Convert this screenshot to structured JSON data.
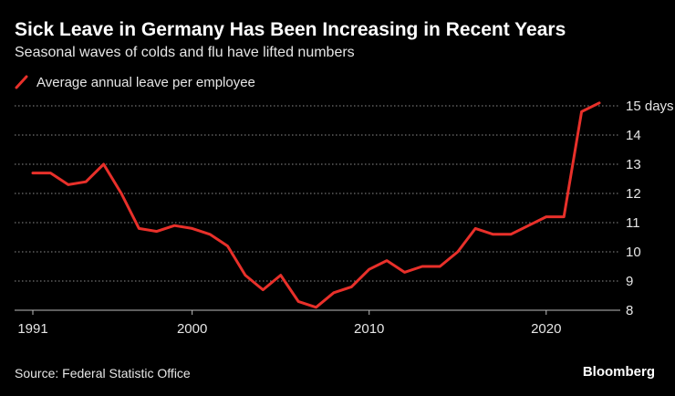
{
  "header": {
    "title": "Sick Leave in Germany Has Been Increasing in Recent Years",
    "subtitle": "Seasonal waves of colds and flu have lifted numbers"
  },
  "legend": {
    "label": "Average annual leave per employee",
    "icon": "red-line-icon"
  },
  "footer": {
    "source": "Source: Federal Statistic Office",
    "brand": "Bloomberg"
  },
  "colors": {
    "background": "#000000",
    "line": "#e8302a",
    "grid": "#8c8c8c",
    "text": "#e6e6e6"
  },
  "chart_data": {
    "type": "line",
    "title": "Sick Leave in Germany Has Been Increasing in Recent Years",
    "subtitle": "Seasonal waves of colds and flu have lifted numbers",
    "xlabel": "",
    "ylabel": "",
    "x": [
      1991,
      1992,
      1993,
      1994,
      1995,
      1996,
      1997,
      1998,
      1999,
      2000,
      2001,
      2002,
      2003,
      2004,
      2005,
      2006,
      2007,
      2008,
      2009,
      2010,
      2011,
      2012,
      2013,
      2014,
      2015,
      2016,
      2017,
      2018,
      2019,
      2020,
      2021,
      2022,
      2023
    ],
    "series": [
      {
        "name": "Average annual leave per employee",
        "values": [
          12.7,
          12.7,
          12.3,
          12.4,
          13.0,
          12.0,
          10.8,
          10.7,
          10.9,
          10.8,
          10.6,
          10.2,
          9.2,
          8.7,
          9.2,
          8.3,
          8.1,
          8.6,
          8.8,
          9.4,
          9.7,
          9.3,
          9.5,
          9.5,
          10.0,
          10.8,
          10.6,
          10.6,
          10.9,
          11.2,
          11.2,
          14.8,
          15.1
        ]
      }
    ],
    "xlim": [
      1991,
      2023
    ],
    "ylim": [
      8,
      15
    ],
    "x_ticks": [
      1991,
      2000,
      2010,
      2020
    ],
    "y_ticks": [
      8,
      9,
      10,
      11,
      12,
      13,
      14,
      15
    ],
    "y_tick_labels": [
      "8",
      "9",
      "10",
      "11",
      "12",
      "13",
      "14",
      "15 days"
    ],
    "grid": true,
    "grid_style": "dotted horizontal",
    "legend_position": "top-left",
    "y_axis_side": "right"
  }
}
